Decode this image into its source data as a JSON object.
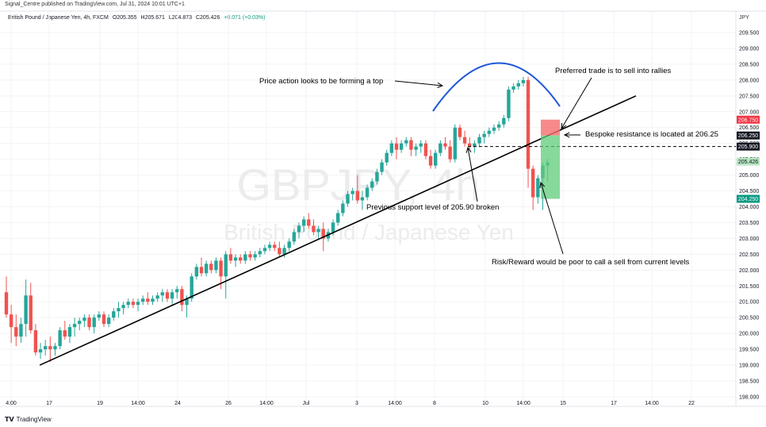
{
  "header": {
    "publisher": "Signal_Centre published on TradingView.com, Jul 31, 2024 10:01 UTC+1",
    "instrument": "British Pound / Japanese Yen, 4h, FXCM",
    "ohlc": [
      "O205.355",
      "H205.671",
      "L204.873",
      "C205.426"
    ],
    "change": "+0.071 (+0.03%)",
    "currency": "JPY"
  },
  "footer": {
    "brand": "TradingView",
    "brand_icon": "tradingview-logo"
  },
  "colors": {
    "up": "#26a69a",
    "down": "#ef5350",
    "arc": "#1e56d8",
    "stop": "#f56d6d",
    "target": "#5fcc7a",
    "red_tag": "#f23645",
    "green_tag": "#089981",
    "dark_tag": "#131722"
  },
  "chart_data": {
    "type": "candlestick",
    "title": "",
    "watermark": [
      "GBPJPY, 4h",
      "British Pound / Japanese Yen"
    ],
    "x_ticks": [
      "4:00",
      "17",
      "19",
      "14:00",
      "24",
      "26",
      "14:00",
      "Jul",
      "3",
      "14:00",
      "8",
      "10",
      "14:00",
      "15",
      "17",
      "14:00",
      "22"
    ],
    "y_ticks": [
      "209.500",
      "209.000",
      "208.500",
      "208.000",
      "207.500",
      "207.000",
      "206.500",
      "206.000",
      "205.500",
      "205.000",
      "204.500",
      "204.000",
      "203.500",
      "203.000",
      "202.500",
      "202.000",
      "201.500",
      "201.000",
      "200.500",
      "200.000",
      "199.500",
      "199.000",
      "198.500",
      "198.000"
    ],
    "ylim": [
      197.95,
      209.9
    ],
    "price_tags": [
      {
        "value": "206.750",
        "style": "red"
      },
      {
        "value": "206.250",
        "style": "dark"
      },
      {
        "value": "205.900",
        "style": "dark"
      },
      {
        "value": "205.426",
        "style": "green_light"
      },
      {
        "value": "204.250",
        "style": "green"
      }
    ],
    "candles": [
      [
        201.3,
        201.8,
        200.5,
        200.6
      ],
      [
        200.6,
        200.9,
        199.7,
        200.2
      ],
      [
        200.2,
        200.6,
        199.6,
        199.9
      ],
      [
        199.9,
        200.5,
        199.7,
        200.3
      ],
      [
        200.3,
        201.7,
        199.9,
        201.2
      ],
      [
        201.2,
        201.6,
        200.0,
        200.1
      ],
      [
        200.1,
        200.3,
        199.3,
        199.4
      ],
      [
        199.4,
        199.7,
        199.2,
        199.5
      ],
      [
        199.5,
        199.8,
        199.3,
        199.6
      ],
      [
        199.6,
        199.9,
        199.1,
        199.5
      ],
      [
        199.5,
        199.7,
        199.3,
        199.6
      ],
      [
        199.6,
        200.2,
        199.5,
        200.1
      ],
      [
        200.1,
        200.4,
        199.8,
        199.9
      ],
      [
        199.9,
        200.3,
        199.7,
        200.2
      ],
      [
        200.2,
        200.5,
        199.9,
        200.3
      ],
      [
        200.3,
        200.5,
        200.1,
        200.4
      ],
      [
        200.4,
        200.6,
        200.2,
        200.5
      ],
      [
        200.5,
        200.6,
        200.1,
        200.2
      ],
      [
        200.2,
        200.6,
        200.0,
        200.5
      ],
      [
        200.5,
        200.7,
        200.4,
        200.6
      ],
      [
        200.6,
        200.7,
        200.2,
        200.3
      ],
      [
        200.3,
        200.6,
        200.2,
        200.5
      ],
      [
        200.5,
        200.8,
        200.4,
        200.7
      ],
      [
        200.7,
        201.0,
        200.5,
        200.8
      ],
      [
        200.8,
        201.0,
        200.6,
        200.9
      ],
      [
        200.9,
        201.1,
        200.8,
        201.0
      ],
      [
        201.0,
        201.1,
        200.8,
        200.9
      ],
      [
        200.9,
        201.1,
        200.7,
        201.0
      ],
      [
        201.0,
        201.2,
        200.9,
        201.1
      ],
      [
        201.1,
        201.3,
        200.9,
        201.0
      ],
      [
        201.0,
        201.2,
        200.9,
        201.1
      ],
      [
        201.1,
        201.3,
        201.0,
        201.2
      ],
      [
        201.2,
        201.4,
        201.0,
        201.3
      ],
      [
        201.3,
        201.4,
        201.0,
        201.1
      ],
      [
        201.1,
        201.4,
        200.9,
        201.3
      ],
      [
        201.3,
        201.5,
        201.1,
        201.4
      ],
      [
        201.4,
        201.5,
        200.7,
        200.9
      ],
      [
        200.9,
        201.2,
        200.5,
        201.1
      ],
      [
        201.1,
        201.9,
        201.0,
        201.8
      ],
      [
        201.8,
        202.2,
        201.7,
        202.1
      ],
      [
        202.1,
        202.4,
        201.8,
        201.9
      ],
      [
        201.9,
        202.3,
        201.8,
        202.2
      ],
      [
        202.2,
        202.3,
        201.9,
        202.0
      ],
      [
        202.0,
        202.4,
        201.9,
        202.3
      ],
      [
        202.3,
        202.4,
        201.4,
        201.8
      ],
      [
        201.8,
        202.6,
        201.1,
        202.5
      ],
      [
        202.5,
        202.7,
        202.2,
        202.3
      ],
      [
        202.3,
        202.5,
        202.1,
        202.4
      ],
      [
        202.4,
        202.5,
        202.2,
        202.3
      ],
      [
        202.3,
        202.6,
        202.2,
        202.5
      ],
      [
        202.5,
        202.6,
        202.3,
        202.4
      ],
      [
        202.4,
        202.6,
        202.3,
        202.5
      ],
      [
        202.5,
        202.7,
        202.4,
        202.6
      ],
      [
        202.6,
        202.8,
        202.5,
        202.7
      ],
      [
        202.7,
        202.9,
        202.6,
        202.8
      ],
      [
        202.8,
        202.9,
        202.6,
        202.7
      ],
      [
        202.7,
        202.9,
        202.4,
        202.5
      ],
      [
        202.5,
        202.8,
        202.4,
        202.7
      ],
      [
        202.7,
        203.0,
        202.6,
        202.9
      ],
      [
        202.9,
        203.3,
        202.8,
        203.2
      ],
      [
        203.2,
        203.5,
        203.0,
        203.4
      ],
      [
        203.4,
        203.7,
        203.2,
        203.6
      ],
      [
        203.6,
        203.8,
        203.3,
        203.4
      ],
      [
        203.4,
        203.6,
        203.1,
        203.2
      ],
      [
        203.2,
        203.4,
        203.0,
        203.3
      ],
      [
        203.3,
        203.5,
        202.6,
        203.0
      ],
      [
        203.0,
        203.3,
        202.9,
        203.2
      ],
      [
        203.2,
        203.6,
        203.1,
        203.5
      ],
      [
        203.5,
        203.9,
        203.4,
        203.8
      ],
      [
        203.8,
        204.2,
        203.7,
        204.1
      ],
      [
        204.1,
        204.5,
        204.0,
        204.4
      ],
      [
        204.4,
        204.6,
        204.2,
        204.5
      ],
      [
        204.5,
        205.0,
        204.1,
        204.2
      ],
      [
        204.2,
        204.5,
        203.9,
        204.3
      ],
      [
        204.3,
        204.7,
        204.2,
        204.6
      ],
      [
        204.6,
        204.9,
        204.5,
        204.8
      ],
      [
        204.8,
        205.2,
        204.7,
        205.1
      ],
      [
        205.1,
        205.5,
        205.0,
        205.4
      ],
      [
        205.4,
        205.8,
        205.3,
        205.7
      ],
      [
        205.7,
        206.1,
        205.6,
        206.0
      ],
      [
        206.0,
        206.2,
        205.5,
        205.8
      ],
      [
        205.8,
        206.1,
        205.7,
        206.0
      ],
      [
        206.0,
        206.2,
        205.9,
        206.1
      ],
      [
        206.1,
        206.2,
        205.6,
        205.8
      ],
      [
        205.8,
        206.0,
        205.6,
        205.9
      ],
      [
        205.9,
        206.1,
        205.7,
        206.0
      ],
      [
        206.0,
        206.1,
        205.5,
        205.6
      ],
      [
        205.6,
        205.8,
        205.2,
        205.3
      ],
      [
        205.3,
        205.8,
        205.2,
        205.7
      ],
      [
        205.7,
        206.1,
        205.6,
        206.0
      ],
      [
        206.0,
        206.2,
        205.8,
        205.9
      ],
      [
        205.9,
        206.1,
        205.4,
        205.5
      ],
      [
        205.5,
        206.6,
        205.4,
        206.5
      ],
      [
        206.5,
        206.6,
        206.1,
        206.2
      ],
      [
        206.2,
        206.4,
        205.9,
        206.0
      ],
      [
        206.0,
        206.2,
        205.8,
        205.9
      ],
      [
        205.9,
        206.1,
        205.7,
        206.0
      ],
      [
        206.0,
        206.3,
        205.9,
        206.2
      ],
      [
        206.2,
        206.4,
        206.0,
        206.3
      ],
      [
        206.3,
        206.5,
        206.2,
        206.4
      ],
      [
        206.4,
        206.6,
        206.3,
        206.5
      ],
      [
        206.5,
        206.7,
        206.4,
        206.6
      ],
      [
        206.6,
        206.9,
        206.5,
        206.8
      ],
      [
        206.8,
        207.8,
        206.7,
        207.7
      ],
      [
        207.7,
        207.9,
        207.6,
        207.8
      ],
      [
        207.8,
        208.0,
        207.7,
        207.9
      ],
      [
        207.9,
        208.1,
        207.8,
        208.0
      ],
      [
        208.0,
        208.1,
        204.6,
        205.2
      ],
      [
        205.2,
        205.3,
        203.9,
        204.3
      ],
      [
        204.3,
        205.0,
        204.1,
        204.9
      ],
      [
        204.9,
        205.4,
        203.9,
        205.3
      ],
      [
        205.3,
        205.5,
        204.8,
        205.4
      ]
    ],
    "trendline": {
      "from": [
        1,
        199.0
      ],
      "to": [
        124,
        207.5
      ]
    },
    "resistance_level": 206.25,
    "support_level": 205.9,
    "annotations": [
      "Price action looks to be forming a top",
      "Preferred trade is to sell into rallies",
      "Bespoke resistance is located at 206.25",
      "Previous support level of 205.90 broken",
      "Risk/Reward would be poor to call a sell from current levels"
    ],
    "grid": true
  }
}
